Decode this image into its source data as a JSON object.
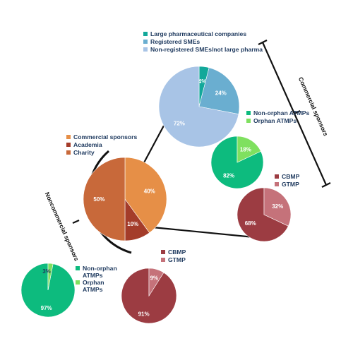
{
  "chart_data": [
    {
      "id": "main",
      "type": "pie",
      "legend_position": "top-left",
      "slices": [
        {
          "label": "Commercial sponsors",
          "value": 40,
          "text": "40%",
          "color": "#e68f47"
        },
        {
          "label": "Academia",
          "value": 10,
          "text": "10%",
          "color": "#a43c2a"
        },
        {
          "label": "Charity",
          "value": 50,
          "text": "50%",
          "color": "#c8693a"
        }
      ]
    },
    {
      "id": "commercial-sponsor-type",
      "type": "pie",
      "legend_position": "top",
      "slices": [
        {
          "label": "Large pharmaceutical companies",
          "value": 4,
          "text": "4%",
          "color": "#12a89a"
        },
        {
          "label": "Registered SMEs",
          "value": 24,
          "text": "24%",
          "color": "#6aaed0"
        },
        {
          "label": "Non-registered SMEs/not large pharma",
          "value": 72,
          "text": "72%",
          "color": "#a8c4e6"
        }
      ]
    },
    {
      "id": "commercial-atmp",
      "type": "pie",
      "legend_position": "right",
      "slices": [
        {
          "label": "Non-orphan ATMPs",
          "value": 82,
          "text": "82%",
          "color": "#0dbb7e"
        },
        {
          "label": "Orphan ATMPs",
          "value": 18,
          "text": "18%",
          "color": "#7fe05f"
        }
      ]
    },
    {
      "id": "commercial-product",
      "type": "pie",
      "legend_position": "top-right",
      "slices": [
        {
          "label": "CBMP",
          "value": 68,
          "text": "68%",
          "color": "#9c3c42"
        },
        {
          "label": "GTMP",
          "value": 32,
          "text": "32%",
          "color": "#c5727a"
        }
      ]
    },
    {
      "id": "noncommercial-atmp",
      "type": "pie",
      "legend_position": "right",
      "slices": [
        {
          "label": "Non-orphan ATMPs",
          "value": 97,
          "text": "97%",
          "color": "#0dbb7e"
        },
        {
          "label": "Orphan ATMPs",
          "value": 3,
          "text": "3%",
          "color": "#7fe05f"
        }
      ]
    },
    {
      "id": "noncommercial-product",
      "type": "pie",
      "legend_position": "top-right",
      "slices": [
        {
          "label": "CBMP",
          "value": 91,
          "text": "91%",
          "color": "#9c3c42"
        },
        {
          "label": "GTMP",
          "value": 9,
          "text": "9%",
          "color": "#c5727a"
        }
      ]
    }
  ],
  "brackets": {
    "commercial": "Commercial sponsors",
    "noncommercial": "Noncommercial sponsors"
  }
}
